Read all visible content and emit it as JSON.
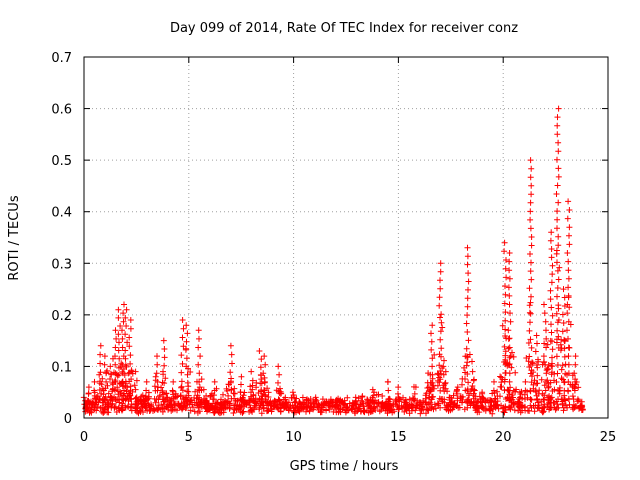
{
  "chart_data": {
    "type": "scatter",
    "title": "Day 099 of 2014, Rate Of TEC Index for receiver conz",
    "xlabel": "GPS time / hours",
    "ylabel": "ROTI / TECUs",
    "xlim": [
      0,
      25
    ],
    "ylim": [
      0,
      0.7
    ],
    "xticks": [
      0,
      5,
      10,
      15,
      20,
      25
    ],
    "yticks": [
      0,
      0.1,
      0.2,
      0.3,
      0.4,
      0.5,
      0.6,
      0.7
    ],
    "xtick_labels": [
      "0",
      "5",
      "10",
      "15",
      "20",
      "25"
    ],
    "ytick_labels": [
      "0",
      "0.1",
      "0.2",
      "0.3",
      "0.4",
      "0.5",
      "0.6",
      "0.7"
    ],
    "grid": true,
    "marker": "+",
    "color": "#ff0000",
    "series": [
      {
        "name": "ROTI",
        "peaks": [
          {
            "x": 0.05,
            "y": 0.04
          },
          {
            "x": 0.2,
            "y": 0.06
          },
          {
            "x": 0.5,
            "y": 0.07
          },
          {
            "x": 0.8,
            "y": 0.14
          },
          {
            "x": 1.0,
            "y": 0.12
          },
          {
            "x": 1.3,
            "y": 0.1
          },
          {
            "x": 1.5,
            "y": 0.17
          },
          {
            "x": 1.7,
            "y": 0.21
          },
          {
            "x": 1.85,
            "y": 0.22
          },
          {
            "x": 2.0,
            "y": 0.21
          },
          {
            "x": 2.2,
            "y": 0.19
          },
          {
            "x": 2.5,
            "y": 0.09
          },
          {
            "x": 3.0,
            "y": 0.07
          },
          {
            "x": 3.5,
            "y": 0.12
          },
          {
            "x": 3.8,
            "y": 0.15
          },
          {
            "x": 4.2,
            "y": 0.07
          },
          {
            "x": 4.7,
            "y": 0.19
          },
          {
            "x": 4.9,
            "y": 0.18
          },
          {
            "x": 5.5,
            "y": 0.17
          },
          {
            "x": 6.2,
            "y": 0.07
          },
          {
            "x": 7.0,
            "y": 0.14
          },
          {
            "x": 7.5,
            "y": 0.08
          },
          {
            "x": 8.0,
            "y": 0.09
          },
          {
            "x": 8.4,
            "y": 0.13
          },
          {
            "x": 8.6,
            "y": 0.12
          },
          {
            "x": 9.3,
            "y": 0.1
          },
          {
            "x": 10.0,
            "y": 0.05
          },
          {
            "x": 11.0,
            "y": 0.04
          },
          {
            "x": 12.0,
            "y": 0.035
          },
          {
            "x": 13.0,
            "y": 0.04
          },
          {
            "x": 13.8,
            "y": 0.05
          },
          {
            "x": 14.5,
            "y": 0.07
          },
          {
            "x": 15.0,
            "y": 0.06
          },
          {
            "x": 15.8,
            "y": 0.06
          },
          {
            "x": 16.6,
            "y": 0.18
          },
          {
            "x": 17.0,
            "y": 0.3
          },
          {
            "x": 17.2,
            "y": 0.1
          },
          {
            "x": 17.8,
            "y": 0.06
          },
          {
            "x": 18.3,
            "y": 0.33
          },
          {
            "x": 18.6,
            "y": 0.09
          },
          {
            "x": 19.0,
            "y": 0.05
          },
          {
            "x": 19.6,
            "y": 0.07
          },
          {
            "x": 20.1,
            "y": 0.34
          },
          {
            "x": 20.3,
            "y": 0.32
          },
          {
            "x": 20.8,
            "y": 0.05
          },
          {
            "x": 21.0,
            "y": 0.07
          },
          {
            "x": 21.3,
            "y": 0.5
          },
          {
            "x": 21.6,
            "y": 0.16
          },
          {
            "x": 22.0,
            "y": 0.22
          },
          {
            "x": 22.3,
            "y": 0.36
          },
          {
            "x": 22.6,
            "y": 0.6
          },
          {
            "x": 22.9,
            "y": 0.25
          },
          {
            "x": 23.1,
            "y": 0.42
          },
          {
            "x": 23.4,
            "y": 0.12
          },
          {
            "x": 23.7,
            "y": 0.02
          }
        ]
      }
    ]
  }
}
